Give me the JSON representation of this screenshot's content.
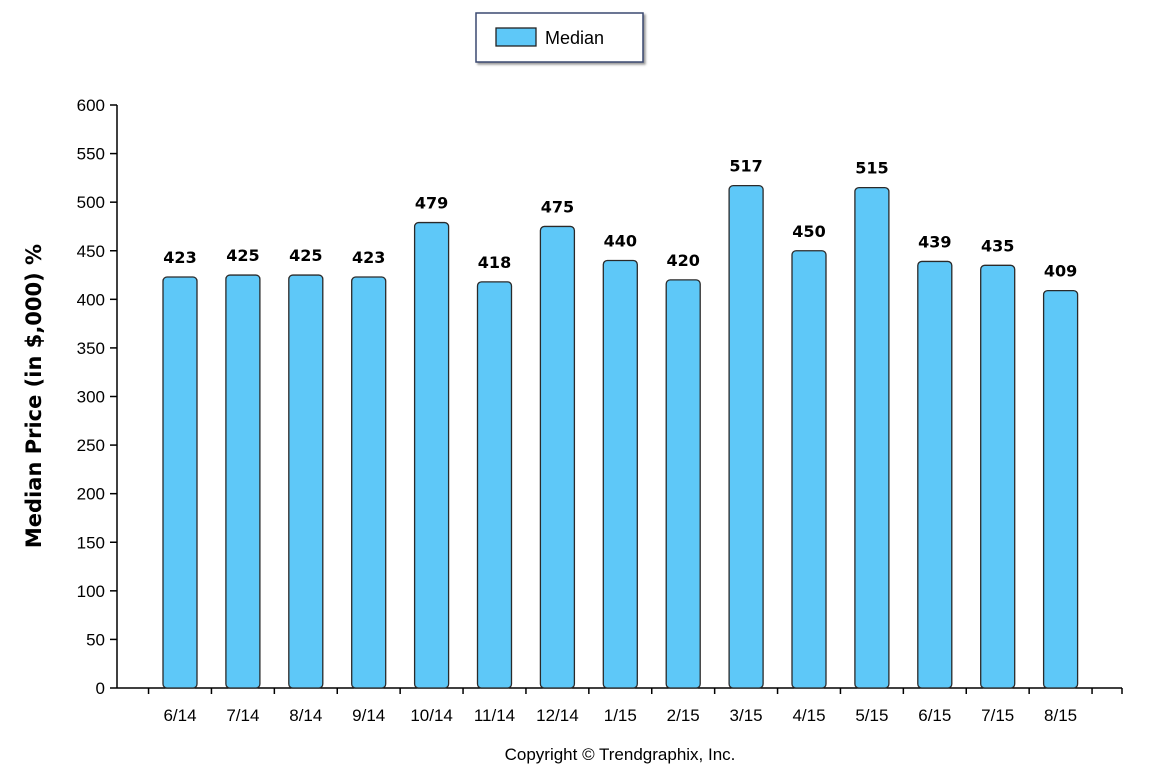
{
  "legend": {
    "label": "Median",
    "position": "top-center"
  },
  "copyright": "Copyright © Trendgraphix, Inc.",
  "colors": {
    "bar_fill": "#5ec8f8",
    "bar_stroke": "#2a2a2a",
    "axis": "#000000"
  },
  "chart_data": {
    "type": "bar",
    "ylabel": "Median Price (in $,000) %",
    "xlabel": "",
    "ylim": [
      0,
      600
    ],
    "ytick_step": 50,
    "grid": false,
    "categories": [
      "6/14",
      "7/14",
      "8/14",
      "9/14",
      "10/14",
      "11/14",
      "12/14",
      "1/15",
      "2/15",
      "3/15",
      "4/15",
      "5/15",
      "6/15",
      "7/15",
      "8/15"
    ],
    "series": [
      {
        "name": "Median",
        "values": [
          423,
          425,
          425,
          423,
          479,
          418,
          475,
          440,
          420,
          517,
          450,
          515,
          439,
          435,
          409
        ]
      }
    ]
  }
}
